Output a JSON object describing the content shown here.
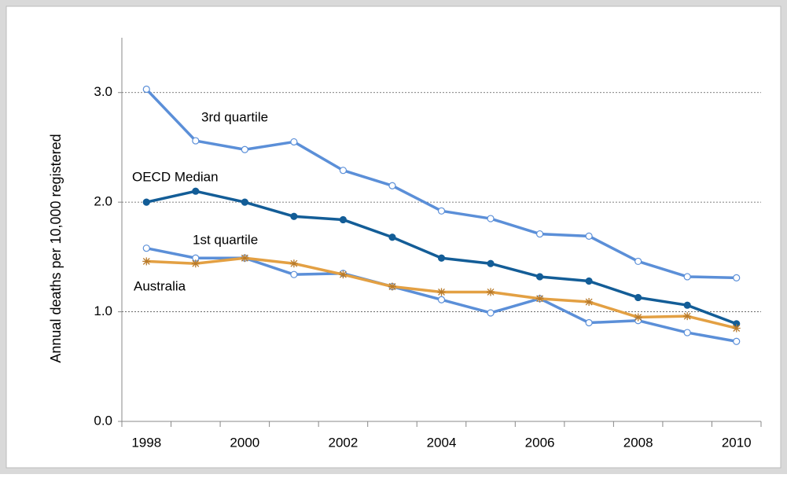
{
  "chart_data": {
    "type": "line",
    "ylabel": "Annual deaths per 10,000 registered",
    "categories": [
      "1998",
      null,
      "2000",
      null,
      "2002",
      null,
      "2004",
      null,
      "2006",
      null,
      "2008",
      null,
      "2010"
    ],
    "series": [
      {
        "name": "3rd quartile",
        "color": "#5b8fd8",
        "marker": "open-circle",
        "values": [
          3.03,
          2.56,
          2.48,
          2.55,
          2.29,
          2.15,
          1.92,
          1.85,
          1.71,
          1.69,
          1.46,
          1.32,
          1.31
        ]
      },
      {
        "name": "OECD Median",
        "color": "#135d97",
        "marker": "filled-circle",
        "values": [
          2.0,
          2.1,
          2.0,
          1.87,
          1.84,
          1.68,
          1.49,
          1.44,
          1.32,
          1.28,
          1.13,
          1.06,
          0.89
        ]
      },
      {
        "name": "1st quartile",
        "color": "#5b8fd8",
        "marker": "open-circle",
        "values": [
          1.58,
          1.49,
          1.49,
          1.34,
          1.35,
          1.23,
          1.11,
          0.99,
          1.12,
          0.9,
          0.92,
          0.81,
          0.73
        ]
      },
      {
        "name": "Australia",
        "color": "#e3a043",
        "marker": "asterisk",
        "values": [
          1.46,
          1.44,
          1.49,
          1.44,
          1.34,
          1.23,
          1.18,
          1.18,
          1.12,
          1.09,
          0.95,
          0.96,
          0.85
        ]
      }
    ],
    "ylim": [
      0,
      3.5
    ],
    "yticks": [
      {
        "value": 0,
        "label": "0.0"
      },
      {
        "value": 1,
        "label": "1.0"
      },
      {
        "value": 2,
        "label": "2.0"
      },
      {
        "value": 3,
        "label": "3.0"
      }
    ],
    "grid": true
  }
}
